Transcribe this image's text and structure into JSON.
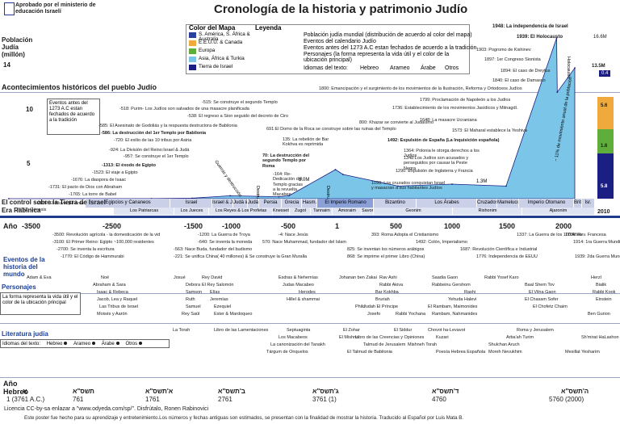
{
  "header": {
    "ministry": "Aprobado por el ministerio de educación Israelí",
    "title": "Cronología de la historia y patrimonio Judío",
    "israel_1948": "1948: La independencia de Israel",
    "holocaust": "1939: El Holocausto",
    "holocaust_pop": "16.6M"
  },
  "legend": {
    "map_color_title": "Color del Mapa",
    "map_items": [
      {
        "label": "S. América, S. África & Australia",
        "color": "#2a3f9e"
      },
      {
        "label": "E.E.U.U. & Canada",
        "color": "#f0a93b"
      },
      {
        "label": "Europa",
        "color": "#5fae3c"
      },
      {
        "label": "Asia, África & Turkia",
        "color": "#7bc6e8"
      },
      {
        "label": "Tierra de Israel",
        "color": "#1b1e82"
      }
    ],
    "legend_title": "Leyenda",
    "legend_items": [
      "Población judía mundial (distribución de acuerdo al color del mapa)",
      "Eventos del calendario Judío",
      "Eventos antes del 1273 A.C estan fechados de acuerdo a la tradición",
      "Personajes (la forma representa la vida útil y el color de la ubicación principal)"
    ],
    "languages_label": "Idiomas del texto:",
    "languages": [
      "Hebreo",
      "Arameo",
      "Árabe",
      "Otros"
    ]
  },
  "population": {
    "label": "Población Judía (millón)",
    "y_ticks": [
      "14",
      "10",
      "5"
    ],
    "right_values": [
      "13.5M",
      "0.4",
      "5.6",
      "1.6",
      "5.8"
    ]
  },
  "chart_data": {
    "type": "area",
    "title": "Cronología de la historia y patrimonio Judío",
    "xlabel": "Año",
    "ylabel": "Población Judía (millón)",
    "x": [
      -3761,
      -2000,
      -1500,
      -1000,
      -586,
      -500,
      -70,
      0,
      500,
      1000,
      1492,
      1939,
      1945,
      2010
    ],
    "series": [
      {
        "name": "Población judía mundial",
        "values": [
          0,
          0.01,
          0.05,
          0.3,
          0.2,
          0.3,
          3.0,
          2.5,
          1.3,
          1.5,
          1.3,
          16.6,
          11,
          13.5
        ]
      }
    ],
    "ylim": [
      0,
      16.6
    ],
    "x_ticks": [
      "-3500",
      "-2500",
      "-1500",
      "-1000",
      "-500",
      "1",
      "500",
      "1000",
      "1500",
      "2000"
    ],
    "annotations": [
      "3.0M",
      "1.3M",
      "0.9M",
      "0.3M"
    ]
  },
  "historical": {
    "section_title": "Acontecimientos históricos del pueblo Judío",
    "before_box": "Eventos antes del 1273 A.C estan fechados de acuerdo a la tradición",
    "events": [
      "-515: Se construye  el segundo Templo",
      "-518: Purim- Los Judíos  son salvados de una masacre planificada",
      "-538: El regreso a Sion seguido del decreto de Ciro",
      "-585: El Asesinato de Godoliás y la respuesta destructora de Babilonia",
      "-586: La destrucción del 1er Templo por Babilonia",
      "-720: El exilio de las 10 tribus por Asiria",
      "-924: La  División del Reino:Israel & Judá",
      "-957: Se construye el 1er Templo",
      "-1313: El éxodo de Egipto",
      "-1523: El viaje a Egipto",
      "-1676: La diaspora de Isaac",
      "-1731: El pacto de Dios con Abraham",
      "-1765: La torre de Babel",
      "-2105: El diluvio (El arca de Noé)",
      "-3761: Génesis",
      "691:El Domo de la Roca se construye sobre las ruinas del Templo",
      "135: La rebelión de Bar Kokhva es reprimida",
      "70: La destrucción del segundo Templo por Roma",
      "-164: Re- Dedicación del Templo gracias a la revuelta Macabee",
      "1800: Emancipación y el surgimiento de los movimientos de la Ilustración, Reforma y Ortodoxos Judíos",
      "1799: Proclamación de Napoleón a los Judíos",
      "1736: Establecimiento de los movimientos Jasídicos y Mitnagdí.",
      "1648: La masacre Ucraniana",
      "800: Khazar se convierte al Judaísmo",
      "1573: El Maharal establece la Yeshiva",
      "1492: Expulsión de España (La Inquisición  española)",
      "1364: Polonia le otorga derechos a los Judíos",
      "1348:Los Judíos son acusados y perseguidos por causar la Peste Negra",
      "1290: Expulsión de Inglaterra y Francia",
      "1099: Los cruzados conquistan Israel y masacran a sus habitantes Judíos",
      "1903: Pogromo de Kishinev",
      "1897: 1er Congreso Sionista",
      "1894: El caso de Dreyfus",
      "1840: El caso de Damasco"
    ],
    "rotated": [
      "Guerras y destrucción",
      "Destrucción",
      "Destrucción",
      "Holocausto",
      "~ 11% de movimiento anual de la población"
    ]
  },
  "eras_top": [
    "Egipcios y Cananeos",
    "Israel",
    "Israel & Judá",
    "Judá & Asiria",
    "Judá Babil",
    "Persia",
    "Grecia",
    "Hasm.",
    "El Imperio Romano",
    "Bizantino",
    "Los Árabes",
    "Cruzados",
    "Mamelucos",
    "Imperio Otomano",
    "Brit.",
    "Isr."
  ],
  "eras_bottom": [
    "Los Patriarcas",
    "Los Jueces",
    "Los Reyes & Los Profetas",
    "Knesset HaGdolah",
    "Zugot",
    "Tannaim",
    "Amoraim",
    "Savoraim",
    "Geonim",
    "Rishonim",
    "Ajaronim"
  ],
  "control": {
    "label": "El control sobre la Tierra de Israel",
    "label2": "Era Rabínica",
    "year_end": "2010"
  },
  "axis": {
    "year_label": "Año",
    "ticks": [
      "-3500",
      "-2500",
      "-1500",
      "-1000",
      "-500",
      "1",
      "500",
      "1000",
      "1500",
      "2000"
    ]
  },
  "world": {
    "title": "Eventos de la historia del mundo",
    "events": [
      "-3500: Revolución agrícola - la domesticación de la vid",
      "-3100: El Primer Reino: Egipto ~100,000 residentes",
      "-2700: Se inventa la escritura",
      "-1770: El Código de Hammurabi",
      "-1200: La Guerra de Troya",
      "-640: Se inventa la moneda",
      "-563: Nace Buda, fundador del budismo",
      "-221: Se unifica China( 40 millones) & Se construye la Gran Muralla",
      "-4: Nace Jesús",
      "570: Nace Muhammad, fundador del Islam",
      "393: Roma Adopta el Cristianismo",
      "825: Se inventan los números arábigos",
      "868: Se imprime el primer Libro (China)",
      "1492: Colón, Imperialismo",
      "1687: Revolución Científica e Industrial",
      "1776: Independencia de EEUU",
      "1337: La Guerra de los 100 Años",
      "1789: Rev. Francesa",
      "1914: 1ra Guerra Mundial",
      "1939: 2da Guerra Mundial"
    ]
  },
  "personajes": {
    "title": "Personajes",
    "box": "La forma representa la vida útil y el color de la ubicación principal",
    "names": [
      "Adam & Eva",
      "Noé",
      "Abraham & Sara",
      "Isaac & Rebeca",
      "Jacob, Lea y Raquel",
      "Las Tribus de Israel",
      "Moisés y Aarón",
      "Josué",
      "Debora",
      "Samson",
      "Ruth",
      "Samuel",
      "Rey Saúl",
      "Rey David",
      "El Rey Salomón",
      "Elías",
      "Jeremías",
      "Ezequiel",
      "Ester & Mardoqueo",
      "Esdras & Nehemías",
      "Judas Macabeo",
      "Herodes",
      "Hillel & shammai",
      "Johanan ben Zakai",
      "Rav Ashi",
      "Rabbi Akiva",
      "Bar Kokhba",
      "Bruriah",
      "Philo",
      "Judah El Príncipe",
      "Josefo",
      "Rabbi Yochana",
      "Saadia Gaon",
      "Rabbeinu Gershom",
      "Rashi",
      "Yehuda Halevi",
      "El Rambam, Maimonides",
      "Rambam, Nahmanides",
      "Rabbi  Yosef Karo",
      "Baal Shem Tov",
      "El Vilna Gaon",
      "El Chasam Sofer",
      "El Chofetz Chaim",
      "Herzl",
      "Bialik",
      "Rabbi Kook",
      "Einstein",
      "Ben Gurion"
    ]
  },
  "literature": {
    "title": "Literatura judía",
    "works": [
      "La Torah",
      "Libro de las Lamentaciones",
      "Septuaginta",
      "Los Macabeos",
      "La canonización del Tanakh",
      "Tárgum de Onquelos",
      "El Zohar",
      "El Mishna",
      "Libro de las Creencias y Opiniones",
      "Talmud de Jerusalem",
      "El Talmud de Babilonia",
      "El Siddur",
      "Chovot ha-Levavot",
      "Kuzari",
      "Mishneh Torah",
      "Poesía Hebrea Española",
      "Roma y Jerusalem",
      "Arba'ah Turim",
      "Shulchan Aruch",
      "Moreh Nevukhim",
      "Sh'mirat HaLashon",
      "Mesillat Yesharim"
    ]
  },
  "hebrew_years": {
    "label1": "Año",
    "label2": "Hebreo",
    "years_he": [
      "א",
      "תשס\"א",
      "א'תשס\"א",
      "ב'תשס\"א",
      "ג'תשס\"א",
      "ד'תשס\"א",
      "ה'תשס\"א"
    ],
    "years": [
      "1 (3761 A.C.)",
      "761",
      "1761",
      "2761",
      "3761 (1)",
      "4760",
      "5760 (2000)"
    ]
  },
  "footer": {
    "line1": "Licencia CC-by-sa enlazar a \"www.odyeda.com/sp/\". Disfrútalo, Ronen Rabinovici",
    "line2": "Este poster fue hecho para su aprendizaje y entretenimiento.Los números y fechas antiguas son estimados, se presentan con la finalidad de mostrar la historia. Traducido al Español por Luis Mata B."
  }
}
